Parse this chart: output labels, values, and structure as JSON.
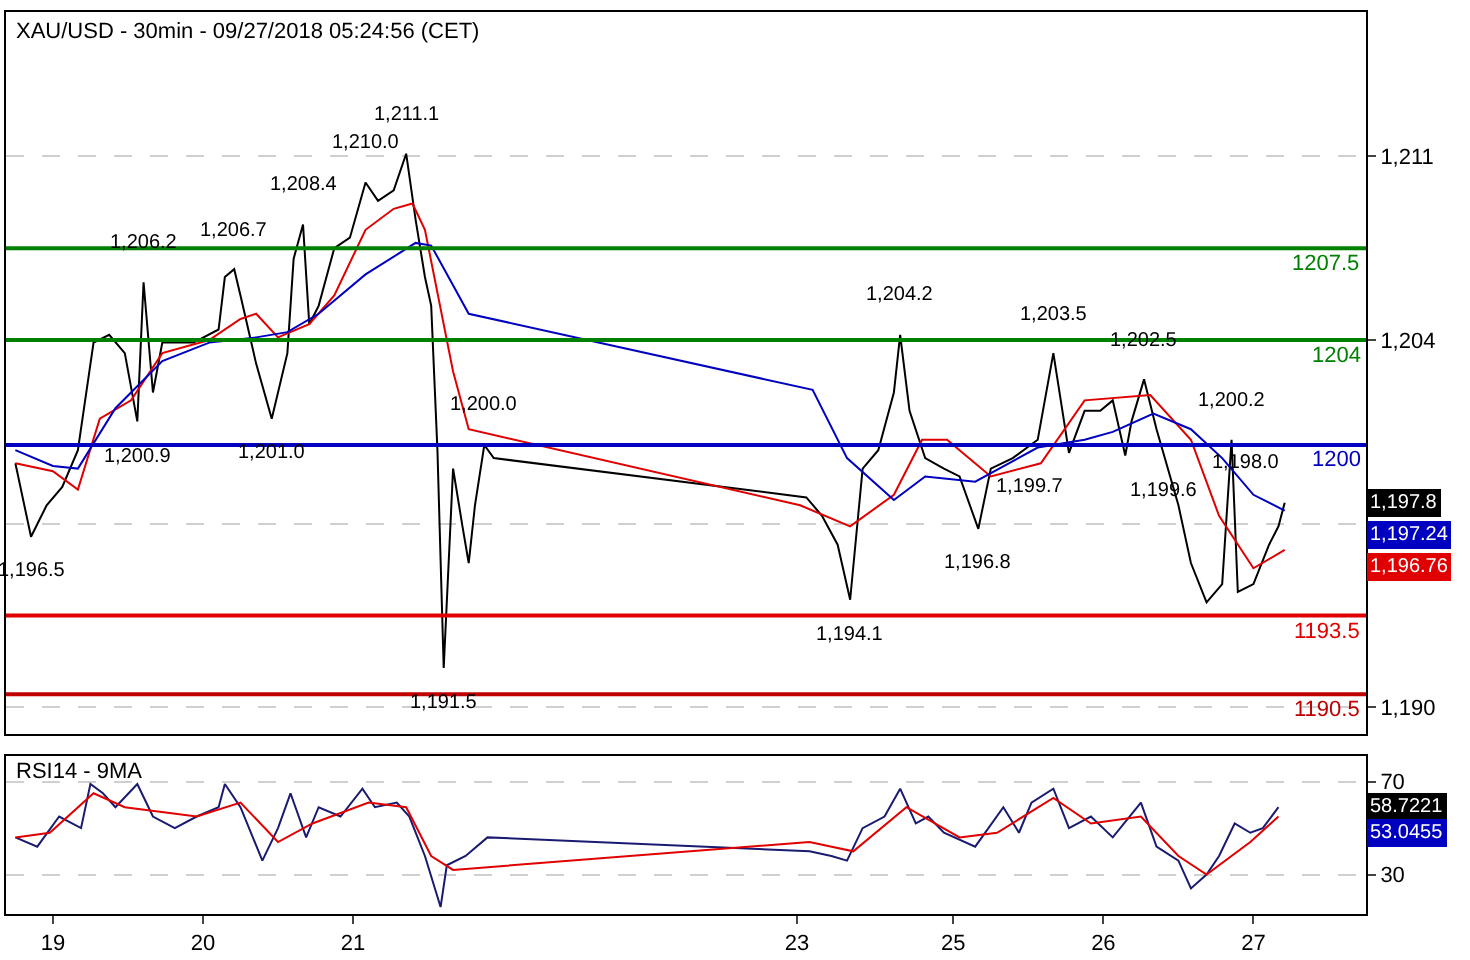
{
  "chart_data": [
    {
      "type": "line",
      "title": "XAU/USD - 30min - 09/27/2018 05:24:56 (CET)",
      "xlim": [
        "2018-09-18T16:30",
        "2018-09-27T18:00"
      ],
      "ylim": [
        1189,
        1216.5
      ],
      "yticks": [
        {
          "value": 1190,
          "label": "1,190"
        },
        {
          "value": 1197,
          "label": null
        },
        {
          "value": 1204,
          "label": "1,204"
        },
        {
          "value": 1211,
          "label": "1,211"
        }
      ],
      "grid": "y",
      "tick_labels": "y",
      "marker": "none",
      "series": [
        {
          "color": "#000000",
          "x": [
            "2018-09-18T18:00",
            "2018-09-18T20:30",
            "2018-09-18T23:00",
            "2018-09-19T01:30",
            "2018-09-19T04:00",
            "2018-09-19T06:30",
            "2018-09-19T09:00",
            "2018-09-19T11:30",
            "2018-09-19T13:30",
            "2018-09-19T14:30",
            "2018-09-19T16:00",
            "2018-09-19T17:30",
            "2018-09-19T20:00",
            "2018-09-19T22:30",
            "2018-09-20T02:30",
            "2018-09-20T03:30",
            "2018-09-20T05:00",
            "2018-09-20T06:00",
            "2018-09-20T08:30",
            "2018-09-20T11:00",
            "2018-09-20T13:30",
            "2018-09-20T14:30",
            "2018-09-20T16:00",
            "2018-09-20T17:00",
            "2018-09-20T18:30",
            "2018-09-20T21:00",
            "2018-09-20T23:30",
            "2018-09-21T02:00",
            "2018-09-21T04:00",
            "2018-09-21T06:30",
            "2018-09-21T08:30",
            "2018-09-21T10:00",
            "2018-09-21T11:30",
            "2018-09-21T12:30",
            "2018-09-21T13:30",
            "2018-09-21T14:30",
            "2018-09-21T16:00",
            "2018-09-21T17:30",
            "2018-09-21T18:30",
            "2018-09-21T19:30",
            "2018-09-21T21:00",
            "2018-09-21T22:30",
            "2018-09-24T00:30",
            "2018-09-24T03:00",
            "2018-09-24T05:30",
            "2018-09-24T07:30",
            "2018-09-24T09:30",
            "2018-09-24T12:00",
            "2018-09-24T14:30",
            "2018-09-24T15:30",
            "2018-09-24T17:00",
            "2018-09-24T19:30",
            "2018-09-24T22:30",
            "2018-09-25T01:00",
            "2018-09-25T04:00",
            "2018-09-25T06:00",
            "2018-09-25T09:30",
            "2018-09-25T13:30",
            "2018-09-25T16:00",
            "2018-09-25T18:30",
            "2018-09-25T21:00",
            "2018-09-25T23:30",
            "2018-09-26T01:30",
            "2018-09-26T03:30",
            "2018-09-26T04:30",
            "2018-09-26T06:30",
            "2018-09-26T08:30",
            "2018-09-26T12:00",
            "2018-09-26T14:00",
            "2018-09-26T16:30",
            "2018-09-26T19:00",
            "2018-09-26T20:30",
            "2018-09-26T21:30",
            "2018-09-27T00:00",
            "2018-09-27T02:30",
            "2018-09-27T04:00",
            "2018-09-27T05:00"
          ],
          "values": [
            1199.3,
            1196.5,
            1197.7,
            1198.4,
            1199.8,
            1203.9,
            1204.2,
            1203.5,
            1200.9,
            1206.2,
            1202.0,
            1203.9,
            1203.9,
            1203.9,
            1204.4,
            1206.4,
            1206.7,
            1205.7,
            1203.1,
            1201.0,
            1203.5,
            1207.1,
            1208.4,
            1204.6,
            1205.3,
            1207.5,
            1207.9,
            1210.0,
            1209.3,
            1209.7,
            1211.1,
            1208.6,
            1206.4,
            1205.3,
            1199.8,
            1191.5,
            1199.1,
            1196.9,
            1195.5,
            1197.7,
            1200.0,
            1199.5,
            1198.0,
            1197.3,
            1196.2,
            1194.1,
            1199.1,
            1199.8,
            1202.0,
            1204.2,
            1201.3,
            1199.5,
            1199.1,
            1198.8,
            1196.8,
            1199.1,
            1199.5,
            1200.2,
            1203.5,
            1199.7,
            1201.3,
            1201.3,
            1201.7,
            1199.6,
            1200.9,
            1202.5,
            1200.6,
            1197.7,
            1195.5,
            1194.0,
            1194.7,
            1200.2,
            1194.4,
            1194.7,
            1196.2,
            1196.9,
            1197.8
          ]
        },
        {
          "color": "#e00000",
          "x": [
            "2018-09-18T18:00",
            "2018-09-19T00:00",
            "2018-09-19T04:00",
            "2018-09-19T07:30",
            "2018-09-19T12:30",
            "2018-09-19T17:30",
            "2018-09-20T01:00",
            "2018-09-20T06:00",
            "2018-09-20T08:30",
            "2018-09-20T12:00",
            "2018-09-20T17:00",
            "2018-09-20T21:00",
            "2018-09-21T02:00",
            "2018-09-21T06:30",
            "2018-09-21T09:30",
            "2018-09-21T11:30",
            "2018-09-21T16:00",
            "2018-09-21T18:30",
            "2018-09-23T23:30",
            "2018-09-24T07:30",
            "2018-09-24T14:30",
            "2018-09-24T19:00",
            "2018-09-24T23:00",
            "2018-09-25T06:00",
            "2018-09-25T14:00",
            "2018-09-25T21:00",
            "2018-09-26T07:30",
            "2018-09-26T14:00",
            "2018-09-26T18:30",
            "2018-09-27T00:00",
            "2018-09-27T05:00"
          ],
          "values": [
            1199.3,
            1199.0,
            1198.3,
            1201.0,
            1201.7,
            1203.5,
            1204.0,
            1204.8,
            1205.0,
            1204.1,
            1204.6,
            1205.7,
            1208.2,
            1209.0,
            1209.2,
            1208.2,
            1202.8,
            1200.6,
            1197.7,
            1196.9,
            1198.1,
            1200.2,
            1200.2,
            1198.8,
            1199.3,
            1201.7,
            1201.9,
            1200.2,
            1197.3,
            1195.3,
            1196.0
          ]
        },
        {
          "color": "#0000c0",
          "x": [
            "2018-09-18T18:00",
            "2018-09-19T00:00",
            "2018-09-19T04:00",
            "2018-09-19T10:00",
            "2018-09-19T17:30",
            "2018-09-20T01:00",
            "2018-09-20T08:30",
            "2018-09-20T13:30",
            "2018-09-20T18:30",
            "2018-09-21T02:00",
            "2018-09-21T10:00",
            "2018-09-21T12:30",
            "2018-09-21T18:30",
            "2018-09-24T01:30",
            "2018-09-24T07:00",
            "2018-09-24T14:30",
            "2018-09-24T19:30",
            "2018-09-25T03:30",
            "2018-09-25T13:30",
            "2018-09-25T21:00",
            "2018-09-26T01:30",
            "2018-09-26T08:00",
            "2018-09-26T14:00",
            "2018-09-26T19:00",
            "2018-09-27T00:00",
            "2018-09-27T05:00"
          ],
          "values": [
            1199.8,
            1199.2,
            1199.1,
            1201.4,
            1203.2,
            1203.9,
            1204.1,
            1204.3,
            1205.0,
            1206.5,
            1207.7,
            1207.6,
            1205.0,
            1202.1,
            1199.5,
            1197.9,
            1198.8,
            1198.6,
            1199.9,
            1200.2,
            1200.5,
            1201.2,
            1200.6,
            1199.5,
            1198.1,
            1197.5
          ]
        }
      ],
      "ref_lines": [
        {
          "axis": "y",
          "value": 1207.5,
          "label": "1207.5",
          "color": "#008000"
        },
        {
          "axis": "y",
          "value": 1204,
          "label": "1204",
          "color": "#008000"
        },
        {
          "axis": "y",
          "value": 1200,
          "label": "1200",
          "color": "#0000c0"
        },
        {
          "axis": "y",
          "value": 1193.5,
          "label": "1193.5",
          "color": "#e00000"
        },
        {
          "axis": "y",
          "value": 1190.5,
          "label": "1190.5",
          "color": "#c00000"
        }
      ],
      "annotations": [
        {
          "text": "1,196.5",
          "x": "2018-09-18T20:30",
          "y": 1196.5
        },
        {
          "text": "1,200.9",
          "x": "2018-09-19T13:30",
          "y": 1200.9
        },
        {
          "text": "1,206.2",
          "x": "2018-09-19T14:30",
          "y": 1206.2
        },
        {
          "text": "1,206.7",
          "x": "2018-09-20T05:00",
          "y": 1206.7
        },
        {
          "text": "1,201.0",
          "x": "2018-09-20T11:00",
          "y": 1201.0
        },
        {
          "text": "1,208.4",
          "x": "2018-09-20T16:00",
          "y": 1208.4
        },
        {
          "text": "1,210.0",
          "x": "2018-09-21T02:00",
          "y": 1210.0
        },
        {
          "text": "1,211.1",
          "x": "2018-09-21T08:30",
          "y": 1211.1
        },
        {
          "text": "1,191.5",
          "x": "2018-09-21T14:30",
          "y": 1191.5
        },
        {
          "text": "1,200.0",
          "x": "2018-09-21T21:00",
          "y": 1200.0
        },
        {
          "text": "1,194.1",
          "x": "2018-09-24T07:30",
          "y": 1194.1
        },
        {
          "text": "1,204.2",
          "x": "2018-09-24T15:30",
          "y": 1204.2
        },
        {
          "text": "1,196.8",
          "x": "2018-09-25T04:00",
          "y": 1196.8
        },
        {
          "text": "1,203.5",
          "x": "2018-09-25T16:00",
          "y": 1203.5
        },
        {
          "text": "1,199.7",
          "x": "2018-09-25T18:30",
          "y": 1199.7
        },
        {
          "text": "1,199.6",
          "x": "2018-09-26T03:30",
          "y": 1199.6
        },
        {
          "text": "1,202.5",
          "x": "2018-09-26T06:30",
          "y": 1202.5
        },
        {
          "text": "1,200.2",
          "x": "2018-09-26T20:30",
          "y": 1200.2
        },
        "1,198.0",
        "1,197.8",
        "1,197.24",
        "1,196.76"
      ]
    },
    {
      "type": "line",
      "title": "RSI14 - 9MA",
      "xlim": [
        "2018-09-18T16:30",
        "2018-09-27T18:00"
      ],
      "xticks": [
        {
          "value": "2018-09-19",
          "label": "19"
        },
        {
          "value": "2018-09-20",
          "label": "20"
        },
        {
          "value": "2018-09-21",
          "label": "21"
        },
        {
          "value": "2018-09-23T23:00",
          "label": "23"
        },
        {
          "value": "2018-09-25",
          "label": "25"
        },
        {
          "value": "2018-09-26",
          "label": "26"
        },
        {
          "value": "2018-09-27",
          "label": "27"
        }
      ],
      "ylim": [
        13,
        81
      ],
      "yticks": [
        30,
        70
      ],
      "grid": "y",
      "marker": "none",
      "series": [
        {
          "color": "#1a1a70",
          "x": [
            "2018-09-18T18:00",
            "2018-09-18T21:30",
            "2018-09-19T01:00",
            "2018-09-19T04:30",
            "2018-09-19T06:00",
            "2018-09-19T08:00",
            "2018-09-19T10:00",
            "2018-09-19T13:30",
            "2018-09-19T16:00",
            "2018-09-19T19:30",
            "2018-09-19T23:00",
            "2018-09-20T02:30",
            "2018-09-20T03:30",
            "2018-09-20T06:00",
            "2018-09-20T09:30",
            "2018-09-20T12:00",
            "2018-09-20T14:00",
            "2018-09-20T16:30",
            "2018-09-20T18:30",
            "2018-09-20T22:00",
            "2018-09-21T01:30",
            "2018-09-21T03:30",
            "2018-09-21T07:00",
            "2018-09-21T09:00",
            "2018-09-21T11:30",
            "2018-09-21T14:00",
            "2018-09-21T15:00",
            "2018-09-21T18:00",
            "2018-09-21T21:30",
            "2018-09-24T01:00",
            "2018-09-24T04:30",
            "2018-09-24T07:00",
            "2018-09-24T09:30",
            "2018-09-24T13:00",
            "2018-09-24T15:30",
            "2018-09-24T18:00",
            "2018-09-24T20:00",
            "2018-09-24T22:30",
            "2018-09-25T03:30",
            "2018-09-25T08:00",
            "2018-09-25T10:30",
            "2018-09-25T12:30",
            "2018-09-25T16:00",
            "2018-09-25T18:30",
            "2018-09-25T22:00",
            "2018-09-26T01:30",
            "2018-09-26T06:00",
            "2018-09-26T08:30",
            "2018-09-26T12:00",
            "2018-09-26T14:00",
            "2018-09-26T16:30",
            "2018-09-26T18:30",
            "2018-09-26T21:00",
            "2018-09-26T23:30",
            "2018-09-27T01:30",
            "2018-09-27T04:00"
          ],
          "values": [
            46,
            42,
            55,
            50,
            69,
            65,
            59,
            69,
            55,
            50,
            55,
            59,
            69,
            59,
            36,
            50,
            65,
            46,
            59,
            55,
            67,
            59,
            61,
            55,
            38,
            16,
            34,
            38,
            46,
            40,
            38,
            36,
            50,
            55,
            67,
            52,
            55,
            48,
            42,
            59,
            48,
            61,
            67,
            50,
            55,
            46,
            61,
            42,
            36,
            24,
            30,
            38,
            52,
            48,
            50,
            59
          ]
        },
        {
          "color": "#e00000",
          "x": [
            "2018-09-18T18:00",
            "2018-09-18T23:30",
            "2018-09-19T06:30",
            "2018-09-19T11:30",
            "2018-09-19T23:00",
            "2018-09-20T06:00",
            "2018-09-20T12:00",
            "2018-09-20T17:30",
            "2018-09-21T02:30",
            "2018-09-21T08:30",
            "2018-09-21T12:30",
            "2018-09-21T16:00",
            "2018-09-24T01:00",
            "2018-09-24T08:00",
            "2018-09-24T16:30",
            "2018-09-25T01:00",
            "2018-09-25T07:00",
            "2018-09-25T16:00",
            "2018-09-25T22:00",
            "2018-09-26T06:00",
            "2018-09-26T12:00",
            "2018-09-26T16:30",
            "2018-09-26T23:30",
            "2018-09-27T04:00"
          ],
          "values": [
            46,
            48,
            65,
            59,
            55,
            61,
            44,
            52,
            61,
            59,
            38,
            32,
            44,
            40,
            59,
            46,
            48,
            63,
            52,
            55,
            38,
            30,
            44,
            55
          ]
        }
      ],
      "annotations": [
        "58.7221",
        "53.0455"
      ]
    }
  ]
}
